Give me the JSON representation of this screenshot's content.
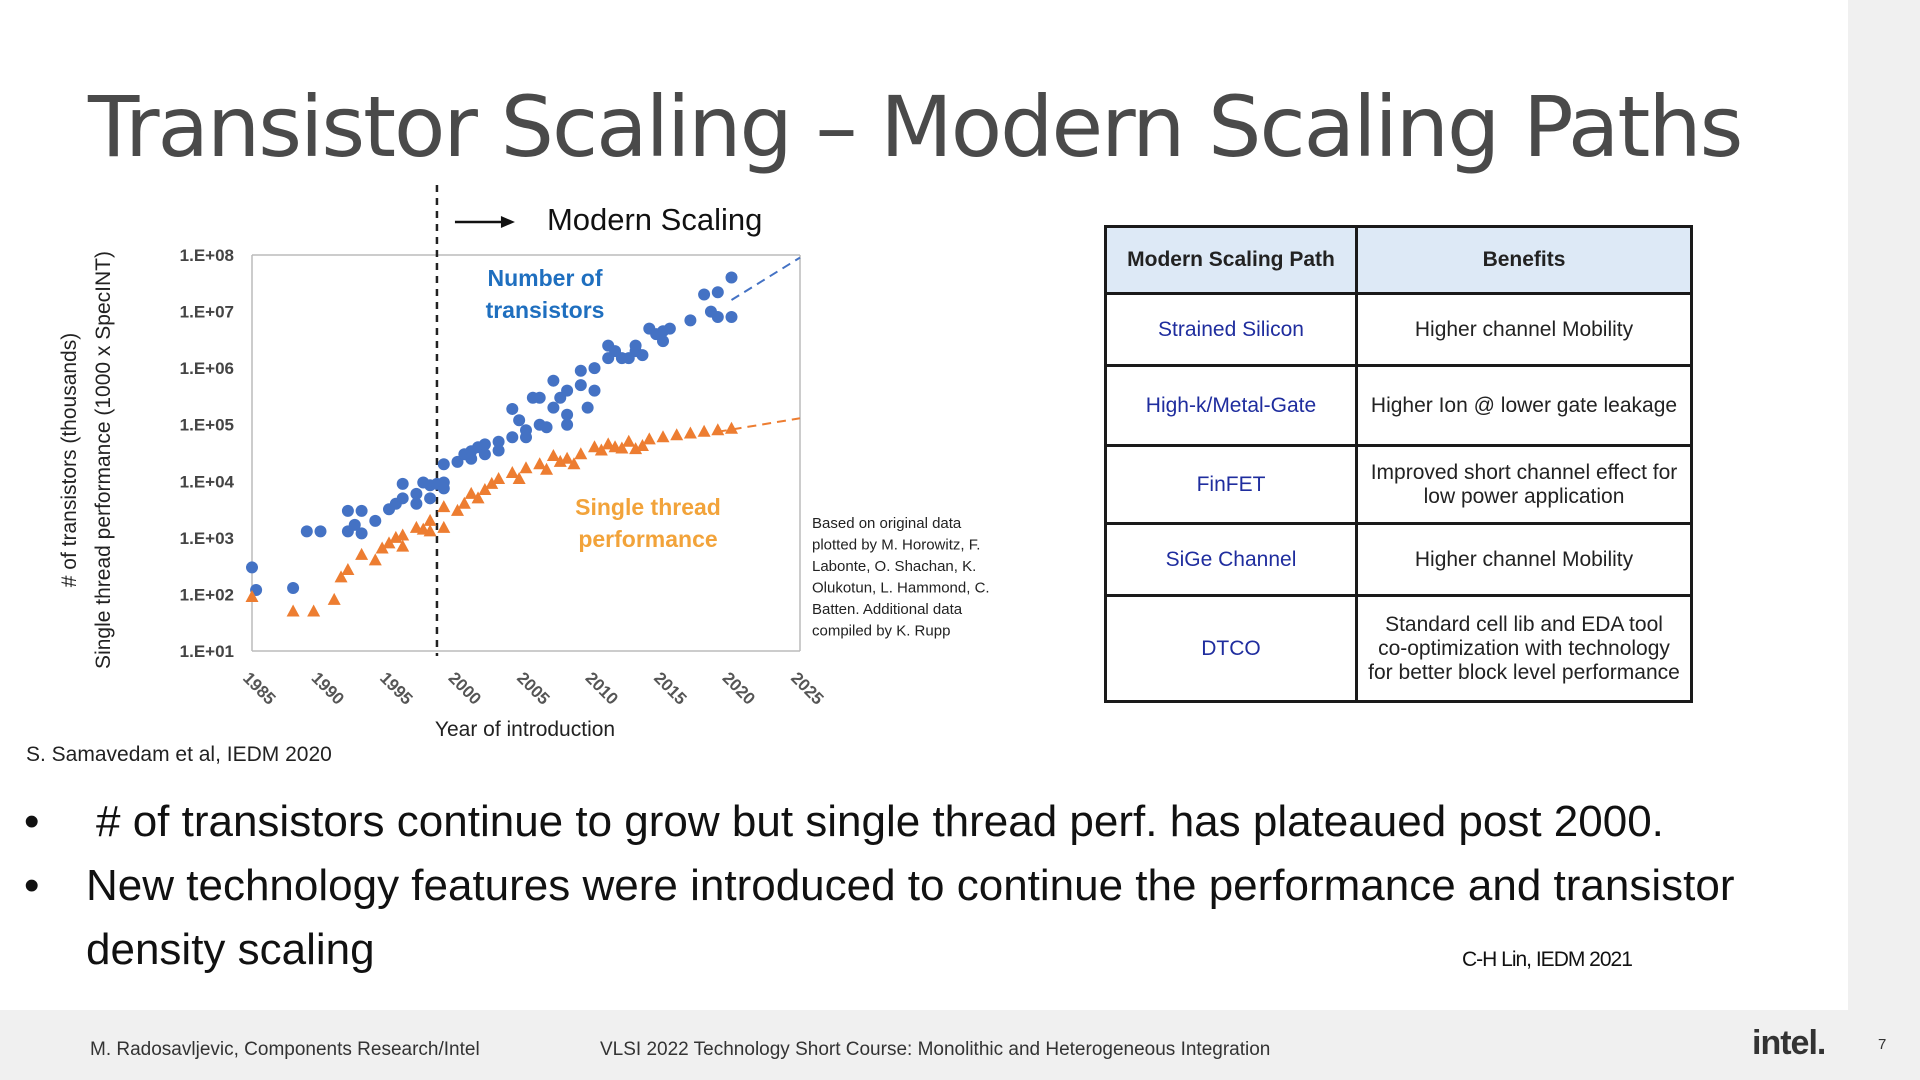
{
  "slide": {
    "title": "Transistor Scaling – Modern Scaling Paths",
    "citation": "S. Samavedam et al, IEDM 2020",
    "credit": "C-H Lin, IEDM 2021",
    "page_number": "7"
  },
  "bullets": [
    "# of transistors continue to grow but single thread perf. has plateaued post 2000.",
    "New technology features were introduced to continue the performance and transistor density scaling"
  ],
  "table": {
    "headers": [
      "Modern Scaling Path",
      "Benefits"
    ],
    "rows": [
      {
        "path": "Strained Silicon",
        "benefit": "Higher channel Mobility"
      },
      {
        "path": "High-k/Metal-Gate",
        "benefit": "Higher Ion @ lower gate leakage"
      },
      {
        "path": "FinFET",
        "benefit": "Improved short channel effect for low power application"
      },
      {
        "path": "SiGe Channel",
        "benefit": "Higher channel Mobility"
      },
      {
        "path": "DTCO",
        "benefit": "Standard cell lib and EDA tool co-optimization with technology for better block level performance"
      }
    ]
  },
  "footer": {
    "left": "M. Radosavljevic, Components Research/Intel",
    "center": "VLSI 2022 Technology Short Course: Monolithic and Heterogeneous Integration",
    "logo": "intel."
  },
  "chart_data": {
    "type": "scatter",
    "y_scale": "log",
    "ylim": [
      10,
      100000000
    ],
    "xlim": [
      1985,
      2025
    ],
    "x_ticks": [
      "1985",
      "1990",
      "1995",
      "2000",
      "2005",
      "2010",
      "2015",
      "2020",
      "2025"
    ],
    "y_ticks": [
      "1.E+01",
      "1.E+02",
      "1.E+03",
      "1.E+04",
      "1.E+05",
      "1.E+06",
      "1.E+07",
      "1.E+08"
    ],
    "xlabel": "Year of introduction",
    "ylabel_lines": [
      "# of transistors (thousands)",
      "Single thread performance (1000 x SpecINT)"
    ],
    "grid": false,
    "annotations": {
      "modern_scaling": "Modern Scaling",
      "modern_scaling_year": 1998.5,
      "source_note": [
        "Based on original data",
        "plotted by M. Horowitz, F.",
        "Labonte, O. Shachan, K.",
        "Olukotun, L. Hammond, C.",
        "Batten. Additional data",
        "compiled by K. Rupp"
      ]
    },
    "series": [
      {
        "name": "Number of transistors",
        "label_lines": [
          "Number of",
          "transistors"
        ],
        "color": "#4472c4",
        "marker": "circle",
        "points": [
          [
            1985,
            300
          ],
          [
            1985.3,
            120
          ],
          [
            1988,
            130
          ],
          [
            1989,
            1300
          ],
          [
            1990,
            1300
          ],
          [
            1992,
            1300
          ],
          [
            1992,
            3000
          ],
          [
            1993,
            3000
          ],
          [
            1992.5,
            1700
          ],
          [
            1993,
            1200
          ],
          [
            1994,
            2000
          ],
          [
            1995,
            3200
          ],
          [
            1995.5,
            4000
          ],
          [
            1996,
            5000
          ],
          [
            1996,
            9000
          ],
          [
            1997,
            6000
          ],
          [
            1997,
            4000
          ],
          [
            1997.5,
            9500
          ],
          [
            1998,
            8500
          ],
          [
            1998,
            5000
          ],
          [
            1998.5,
            9000
          ],
          [
            1999,
            7500
          ],
          [
            1999,
            9500
          ],
          [
            1999,
            20000
          ],
          [
            2000,
            22000
          ],
          [
            2000.5,
            30000
          ],
          [
            2001,
            34000
          ],
          [
            2001,
            25000
          ],
          [
            2001.5,
            40000
          ],
          [
            2002,
            30000
          ],
          [
            2002,
            45000
          ],
          [
            2003,
            50000
          ],
          [
            2003,
            35000
          ],
          [
            2004,
            60000
          ],
          [
            2004,
            190000
          ],
          [
            2004.5,
            120000
          ],
          [
            2005,
            80000
          ],
          [
            2005,
            60000
          ],
          [
            2005.5,
            300000
          ],
          [
            2006,
            100000
          ],
          [
            2006,
            300000
          ],
          [
            2006.5,
            90000
          ],
          [
            2007,
            200000
          ],
          [
            2007,
            600000
          ],
          [
            2007.5,
            300000
          ],
          [
            2008,
            100000
          ],
          [
            2008,
            400000
          ],
          [
            2008,
            150000
          ],
          [
            2009,
            900000
          ],
          [
            2009,
            500000
          ],
          [
            2009.5,
            200000
          ],
          [
            2010,
            400000
          ],
          [
            2010,
            1000000
          ],
          [
            2011,
            2500000
          ],
          [
            2011,
            1500000
          ],
          [
            2011.5,
            2000000
          ],
          [
            2012,
            1500000
          ],
          [
            2012.5,
            1500000
          ],
          [
            2013,
            2000000
          ],
          [
            2013,
            2500000
          ],
          [
            2013.5,
            1700000
          ],
          [
            2014,
            5000000
          ],
          [
            2014.5,
            4000000
          ],
          [
            2015,
            4500000
          ],
          [
            2015,
            3000000
          ],
          [
            2015.5,
            5000000
          ],
          [
            2017,
            7000000
          ],
          [
            2018,
            20000000
          ],
          [
            2018.5,
            10000000
          ],
          [
            2019,
            22000000
          ],
          [
            2019,
            8000000
          ],
          [
            2020,
            8000000
          ],
          [
            2020,
            40000000
          ]
        ],
        "trend": [
          [
            2020,
            16000000
          ],
          [
            2025,
            90000000
          ]
        ]
      },
      {
        "name": "Single thread performance",
        "label_lines": [
          "Single thread",
          "performance"
        ],
        "color": "#ed7d31",
        "marker": "triangle",
        "points": [
          [
            1985,
            90
          ],
          [
            1988,
            50
          ],
          [
            1989.5,
            50
          ],
          [
            1991,
            80
          ],
          [
            1991.5,
            200
          ],
          [
            1992,
            270
          ],
          [
            1993,
            500
          ],
          [
            1994,
            400
          ],
          [
            1994.5,
            650
          ],
          [
            1995,
            800
          ],
          [
            1995.5,
            1000
          ],
          [
            1996,
            700
          ],
          [
            1996,
            1100
          ],
          [
            1997,
            1500
          ],
          [
            1997.5,
            1400
          ],
          [
            1998,
            2000
          ],
          [
            1998,
            1300
          ],
          [
            1999,
            1500
          ],
          [
            1999,
            3500
          ],
          [
            2000,
            3000
          ],
          [
            2000.5,
            4000
          ],
          [
            2001,
            6000
          ],
          [
            2001.5,
            5000
          ],
          [
            2002,
            7000
          ],
          [
            2002.5,
            9000
          ],
          [
            2003,
            11000
          ],
          [
            2004,
            14000
          ],
          [
            2004.5,
            11000
          ],
          [
            2005,
            17000
          ],
          [
            2006,
            20000
          ],
          [
            2006.5,
            16000
          ],
          [
            2007,
            28000
          ],
          [
            2007.5,
            22000
          ],
          [
            2008,
            25000
          ],
          [
            2008.5,
            20000
          ],
          [
            2009,
            30000
          ],
          [
            2010,
            40000
          ],
          [
            2010.5,
            35000
          ],
          [
            2011,
            45000
          ],
          [
            2011.5,
            40000
          ],
          [
            2012,
            38000
          ],
          [
            2012.5,
            50000
          ],
          [
            2013,
            37000
          ],
          [
            2013.5,
            42000
          ],
          [
            2014,
            55000
          ],
          [
            2015,
            60000
          ],
          [
            2016,
            65000
          ],
          [
            2017,
            70000
          ],
          [
            2018,
            75000
          ],
          [
            2019,
            80000
          ],
          [
            2020,
            85000
          ]
        ],
        "trend": [
          [
            2019,
            75000
          ],
          [
            2025,
            130000
          ]
        ]
      }
    ]
  }
}
